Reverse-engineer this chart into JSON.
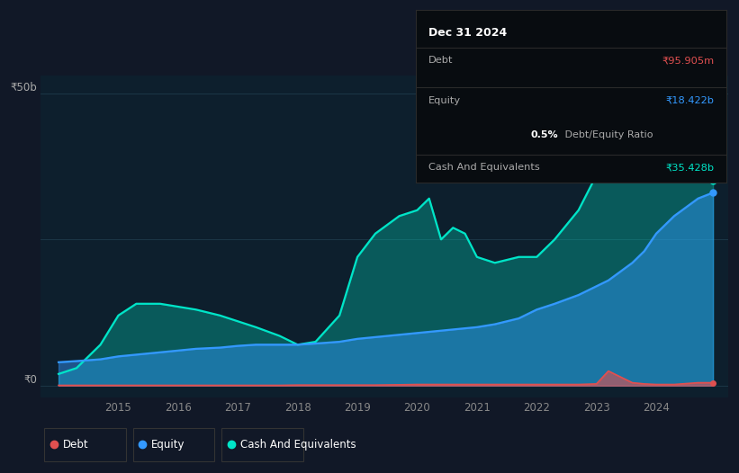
{
  "bg_color": "#111827",
  "plot_bg_color": "#0d1f2d",
  "grid_color": "#1e3a4a",
  "ylabel_50b": "₹50b",
  "ylabel_0": "₹0",
  "cash_color": "#00e5c8",
  "equity_color": "#3399ff",
  "debt_color": "#e05050",
  "ylim_max": 50,
  "ylim_min": -2,
  "xlim_min": 2013.7,
  "xlim_max": 2025.2,
  "tooltip_date": "Dec 31 2024",
  "tooltip_debt_label": "Debt",
  "tooltip_debt_value": "₹95.905m",
  "tooltip_equity_label": "Equity",
  "tooltip_equity_value": "₹18.422b",
  "tooltip_ratio_bold": "0.5%",
  "tooltip_ratio_rest": " Debt/Equity Ratio",
  "tooltip_cash_label": "Cash And Equivalents",
  "tooltip_cash_value": "₹35.428b",
  "legend_debt": "Debt",
  "legend_equity": "Equity",
  "legend_cash": "Cash And Equivalents",
  "xticks": [
    2015,
    2016,
    2017,
    2018,
    2019,
    2020,
    2021,
    2022,
    2023,
    2024
  ],
  "xtick_labels": [
    "2015",
    "2016",
    "2017",
    "2018",
    "2019",
    "2020",
    "2021",
    "2022",
    "2023",
    "2024"
  ]
}
